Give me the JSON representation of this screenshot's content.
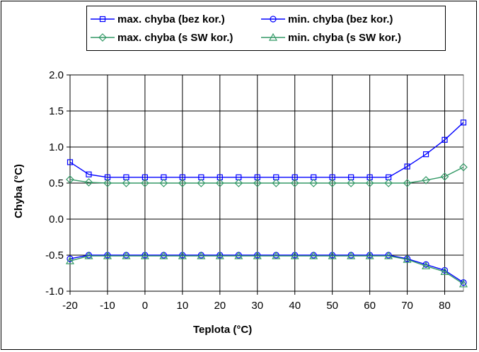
{
  "chart_data": {
    "type": "line",
    "xlabel": "Teplota (°C)",
    "ylabel": "Chyba (°C)",
    "xlim": [
      -20,
      85
    ],
    "ylim": [
      -1.0,
      2.0
    ],
    "x_ticks": [
      "-20",
      "-10",
      "0",
      "10",
      "20",
      "30",
      "40",
      "50",
      "60",
      "70",
      "80"
    ],
    "y_ticks": [
      "2.0",
      "1.5",
      "1.0",
      "0.5",
      "0.0",
      "-0.5",
      "-1.0"
    ],
    "grid": "on",
    "legend_position": "top",
    "x": [
      -20,
      -15,
      -10,
      -5,
      0,
      5,
      10,
      15,
      20,
      25,
      30,
      35,
      40,
      45,
      50,
      55,
      60,
      65,
      70,
      75,
      80,
      85
    ],
    "series": [
      {
        "name": "max. chyba (bez kor.)",
        "color": "#0000ff",
        "marker": "square",
        "values": [
          0.79,
          0.62,
          0.58,
          0.58,
          0.58,
          0.58,
          0.58,
          0.58,
          0.58,
          0.58,
          0.58,
          0.58,
          0.58,
          0.58,
          0.58,
          0.58,
          0.58,
          0.58,
          0.73,
          0.9,
          1.1,
          1.34
        ]
      },
      {
        "name": "min. chyba (bez kor.)",
        "color": "#0000ff",
        "marker": "circle",
        "values": [
          -0.55,
          -0.5,
          -0.5,
          -0.5,
          -0.5,
          -0.5,
          -0.5,
          -0.5,
          -0.5,
          -0.5,
          -0.5,
          -0.5,
          -0.5,
          -0.5,
          -0.5,
          -0.5,
          -0.5,
          -0.5,
          -0.55,
          -0.63,
          -0.71,
          -0.88
        ]
      },
      {
        "name": "max. chyba (s SW kor.)",
        "color": "#339966",
        "marker": "diamond",
        "values": [
          0.55,
          0.51,
          0.5,
          0.5,
          0.5,
          0.5,
          0.5,
          0.5,
          0.5,
          0.5,
          0.5,
          0.5,
          0.5,
          0.5,
          0.5,
          0.5,
          0.5,
          0.5,
          0.5,
          0.54,
          0.59,
          0.72
        ]
      },
      {
        "name": "min. chyba (s SW kor.)",
        "color": "#339966",
        "marker": "triangle",
        "values": [
          -0.58,
          -0.51,
          -0.51,
          -0.51,
          -0.51,
          -0.51,
          -0.51,
          -0.51,
          -0.51,
          -0.51,
          -0.51,
          -0.51,
          -0.51,
          -0.51,
          -0.51,
          -0.51,
          -0.51,
          -0.51,
          -0.56,
          -0.65,
          -0.73,
          -0.9
        ]
      }
    ]
  }
}
